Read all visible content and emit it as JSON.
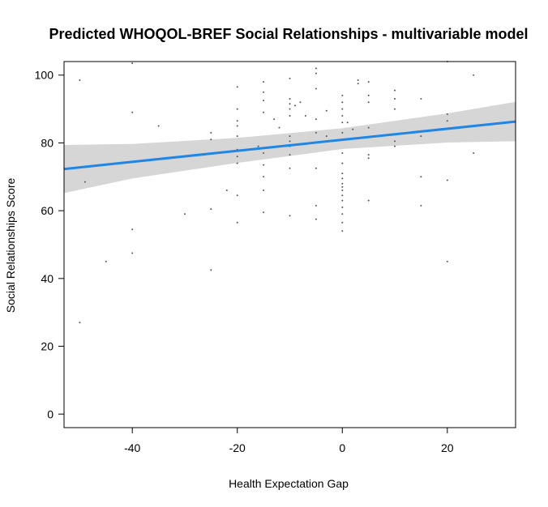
{
  "chart_data": {
    "type": "scatter",
    "title": "Predicted WHOQOL-BREF Social Relationships - multivariable model",
    "xlabel": "Health Expectation Gap",
    "ylabel": "Social Relationships Score",
    "xlim": [
      -53,
      33
    ],
    "ylim": [
      -4,
      104
    ],
    "xticks": [
      -40,
      -20,
      0,
      20
    ],
    "yticks": [
      0,
      20,
      40,
      60,
      80,
      100
    ],
    "grid": false,
    "legend": "none",
    "colors": {
      "points": "#555555",
      "fit_line": "#1f86e8",
      "confidence_band": "#d6d6d6",
      "frame": "#000000"
    },
    "fit_line": {
      "x": [
        -53,
        33
      ],
      "y": [
        72.3,
        86.3
      ]
    },
    "confidence_band": {
      "x": [
        -53,
        -40,
        -20,
        0,
        20,
        33
      ],
      "lower": [
        65.2,
        69.5,
        74.1,
        78.2,
        80.1,
        80.5
      ],
      "upper": [
        79.4,
        79.7,
        81.5,
        84.3,
        88.7,
        92.1
      ]
    },
    "points": [
      {
        "x": -50,
        "y": 98.5
      },
      {
        "x": -50,
        "y": 27
      },
      {
        "x": -49,
        "y": 68.5
      },
      {
        "x": -45,
        "y": 45
      },
      {
        "x": -40,
        "y": 103.5
      },
      {
        "x": -40,
        "y": 89
      },
      {
        "x": -40,
        "y": 54.5
      },
      {
        "x": -40,
        "y": 47.5
      },
      {
        "x": -35,
        "y": 85
      },
      {
        "x": -30,
        "y": 59
      },
      {
        "x": -25,
        "y": 83
      },
      {
        "x": -25,
        "y": 81
      },
      {
        "x": -25,
        "y": 60.5
      },
      {
        "x": -25,
        "y": 42.5
      },
      {
        "x": -22,
        "y": 66
      },
      {
        "x": -20,
        "y": 96.5
      },
      {
        "x": -20,
        "y": 90
      },
      {
        "x": -20,
        "y": 86.5
      },
      {
        "x": -20,
        "y": 85
      },
      {
        "x": -20,
        "y": 82
      },
      {
        "x": -20,
        "y": 78
      },
      {
        "x": -20,
        "y": 76
      },
      {
        "x": -20,
        "y": 74
      },
      {
        "x": -20,
        "y": 64.5
      },
      {
        "x": -20,
        "y": 56.5
      },
      {
        "x": -16,
        "y": 79
      },
      {
        "x": -15,
        "y": 98
      },
      {
        "x": -15,
        "y": 95
      },
      {
        "x": -15,
        "y": 92.5
      },
      {
        "x": -15,
        "y": 89
      },
      {
        "x": -15,
        "y": 77
      },
      {
        "x": -15,
        "y": 73.5
      },
      {
        "x": -15,
        "y": 70
      },
      {
        "x": -15,
        "y": 66
      },
      {
        "x": -15,
        "y": 59.5
      },
      {
        "x": -13,
        "y": 87
      },
      {
        "x": -12,
        "y": 84.5
      },
      {
        "x": -10,
        "y": 99
      },
      {
        "x": -10,
        "y": 93
      },
      {
        "x": -10,
        "y": 91.5
      },
      {
        "x": -10,
        "y": 90
      },
      {
        "x": -10,
        "y": 88
      },
      {
        "x": -10,
        "y": 82
      },
      {
        "x": -10,
        "y": 80.5
      },
      {
        "x": -10,
        "y": 79
      },
      {
        "x": -10,
        "y": 76.5
      },
      {
        "x": -10,
        "y": 72.5
      },
      {
        "x": -10,
        "y": 58.5
      },
      {
        "x": -9,
        "y": 91
      },
      {
        "x": -8,
        "y": 92
      },
      {
        "x": -7,
        "y": 88
      },
      {
        "x": -5,
        "y": 102
      },
      {
        "x": -5,
        "y": 100.5
      },
      {
        "x": -5,
        "y": 96
      },
      {
        "x": -5,
        "y": 87
      },
      {
        "x": -5,
        "y": 83
      },
      {
        "x": -5,
        "y": 72.5
      },
      {
        "x": -5,
        "y": 61.5
      },
      {
        "x": -5,
        "y": 57.5
      },
      {
        "x": -3,
        "y": 89.5
      },
      {
        "x": -3,
        "y": 82
      },
      {
        "x": 0,
        "y": 94
      },
      {
        "x": 0,
        "y": 92
      },
      {
        "x": 0,
        "y": 90
      },
      {
        "x": 0,
        "y": 88
      },
      {
        "x": 0,
        "y": 86
      },
      {
        "x": 0,
        "y": 83
      },
      {
        "x": 0,
        "y": 81
      },
      {
        "x": 0,
        "y": 77
      },
      {
        "x": 0,
        "y": 74
      },
      {
        "x": 0,
        "y": 71
      },
      {
        "x": 0,
        "y": 69.5
      },
      {
        "x": 0,
        "y": 68
      },
      {
        "x": 0,
        "y": 67
      },
      {
        "x": 0,
        "y": 66
      },
      {
        "x": 0,
        "y": 64.5
      },
      {
        "x": 0,
        "y": 63
      },
      {
        "x": 0,
        "y": 61
      },
      {
        "x": 0,
        "y": 59
      },
      {
        "x": 0,
        "y": 56.5
      },
      {
        "x": 0,
        "y": 54
      },
      {
        "x": 1,
        "y": 86
      },
      {
        "x": 2,
        "y": 84
      },
      {
        "x": 3,
        "y": 98.5
      },
      {
        "x": 3,
        "y": 97.5
      },
      {
        "x": 5,
        "y": 98
      },
      {
        "x": 5,
        "y": 94
      },
      {
        "x": 5,
        "y": 92
      },
      {
        "x": 5,
        "y": 84.5
      },
      {
        "x": 5,
        "y": 76.5
      },
      {
        "x": 5,
        "y": 75.5
      },
      {
        "x": 5,
        "y": 63
      },
      {
        "x": 10,
        "y": 95.5
      },
      {
        "x": 10,
        "y": 93
      },
      {
        "x": 10,
        "y": 90
      },
      {
        "x": 10,
        "y": 80.5
      },
      {
        "x": 10,
        "y": 79
      },
      {
        "x": 15,
        "y": 93
      },
      {
        "x": 15,
        "y": 82
      },
      {
        "x": 15,
        "y": 70
      },
      {
        "x": 15,
        "y": 61.5
      },
      {
        "x": 20,
        "y": 104
      },
      {
        "x": 20,
        "y": 88.5
      },
      {
        "x": 20,
        "y": 86.5
      },
      {
        "x": 20,
        "y": 69
      },
      {
        "x": 20,
        "y": 45
      },
      {
        "x": 25,
        "y": 100
      },
      {
        "x": 25,
        "y": 77
      }
    ]
  }
}
